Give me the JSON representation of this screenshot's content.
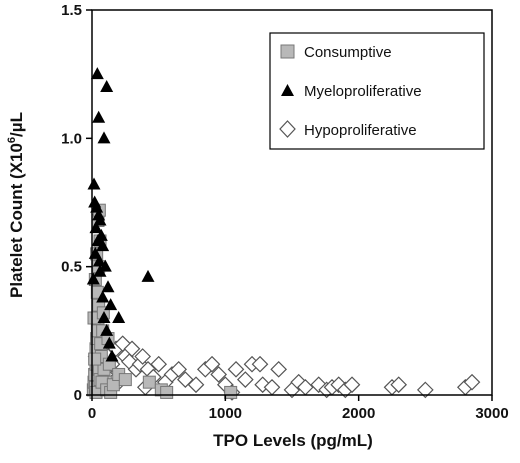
{
  "chart_data": {
    "type": "scatter",
    "title": "",
    "xlabel": "TPO Levels (pg/mL)",
    "ylabel_main": "Platelet Count (X10",
    "ylabel_sup": "6",
    "ylabel_end": "/µL",
    "xlim": [
      0,
      3000
    ],
    "ylim": [
      0,
      1.5
    ],
    "x_ticks": [
      0,
      1000,
      2000,
      3000
    ],
    "x_tick_labels": [
      "0",
      "1000",
      "2000",
      "3000"
    ],
    "y_ticks": [
      0,
      0.5,
      1.0,
      1.5
    ],
    "y_tick_labels": [
      "0",
      "0.5",
      "1.0",
      "1.5"
    ],
    "grid": false,
    "legend_position": "top-right",
    "series": [
      {
        "name": "Consumptive",
        "marker": "square",
        "color": "#b8b8b8",
        "points": [
          [
            10,
            0.02
          ],
          [
            15,
            0.05
          ],
          [
            20,
            0.08
          ],
          [
            25,
            0.03
          ],
          [
            30,
            0.12
          ],
          [
            30,
            0.18
          ],
          [
            35,
            0.22
          ],
          [
            40,
            0.25
          ],
          [
            45,
            0.3
          ],
          [
            50,
            0.35
          ],
          [
            55,
            0.1
          ],
          [
            60,
            0.06
          ],
          [
            40,
            0.4
          ],
          [
            50,
            0.5
          ],
          [
            60,
            0.6
          ],
          [
            45,
            0.68
          ],
          [
            55,
            0.72
          ],
          [
            70,
            0.15
          ],
          [
            80,
            0.25
          ],
          [
            90,
            0.1
          ],
          [
            100,
            0.05
          ],
          [
            20,
            0.14
          ],
          [
            30,
            0.01
          ],
          [
            65,
            0.2
          ],
          [
            75,
            0.05
          ],
          [
            110,
            0.02
          ],
          [
            130,
            0.12
          ],
          [
            140,
            0.01
          ],
          [
            160,
            0.04
          ],
          [
            200,
            0.08
          ],
          [
            250,
            0.06
          ],
          [
            430,
            0.05
          ],
          [
            520,
            0.02
          ],
          [
            560,
            0.01
          ],
          [
            1040,
            0.01
          ],
          [
            25,
            0.45
          ],
          [
            35,
            0.55
          ],
          [
            15,
            0.3
          ],
          [
            85,
            0.32
          ],
          [
            120,
            0.22
          ]
        ]
      },
      {
        "name": "Myeloproliferative",
        "marker": "triangle",
        "color": "#000000",
        "points": [
          [
            40,
            1.25
          ],
          [
            110,
            1.2
          ],
          [
            50,
            1.08
          ],
          [
            90,
            1.0
          ],
          [
            15,
            0.82
          ],
          [
            20,
            0.75
          ],
          [
            35,
            0.73
          ],
          [
            50,
            0.7
          ],
          [
            60,
            0.68
          ],
          [
            30,
            0.65
          ],
          [
            70,
            0.62
          ],
          [
            45,
            0.6
          ],
          [
            80,
            0.58
          ],
          [
            25,
            0.55
          ],
          [
            55,
            0.52
          ],
          [
            100,
            0.5
          ],
          [
            10,
            0.45
          ],
          [
            120,
            0.42
          ],
          [
            140,
            0.35
          ],
          [
            90,
            0.3
          ],
          [
            200,
            0.3
          ],
          [
            110,
            0.25
          ],
          [
            130,
            0.2
          ],
          [
            150,
            0.15
          ],
          [
            60,
            0.48
          ],
          [
            420,
            0.46
          ],
          [
            80,
            0.38
          ]
        ]
      },
      {
        "name": "Hypoproliferative",
        "marker": "diamond",
        "color": "#ffffff",
        "points": [
          [
            30,
            0.15
          ],
          [
            50,
            0.12
          ],
          [
            80,
            0.1
          ],
          [
            100,
            0.08
          ],
          [
            120,
            0.15
          ],
          [
            150,
            0.12
          ],
          [
            180,
            0.18
          ],
          [
            230,
            0.2
          ],
          [
            250,
            0.15
          ],
          [
            280,
            0.13
          ],
          [
            300,
            0.18
          ],
          [
            330,
            0.1
          ],
          [
            360,
            0.12
          ],
          [
            380,
            0.15
          ],
          [
            420,
            0.1
          ],
          [
            460,
            0.07
          ],
          [
            500,
            0.12
          ],
          [
            550,
            0.05
          ],
          [
            600,
            0.08
          ],
          [
            650,
            0.1
          ],
          [
            700,
            0.06
          ],
          [
            780,
            0.04
          ],
          [
            850,
            0.1
          ],
          [
            900,
            0.12
          ],
          [
            950,
            0.08
          ],
          [
            1000,
            0.04
          ],
          [
            1080,
            0.1
          ],
          [
            1150,
            0.06
          ],
          [
            1200,
            0.12
          ],
          [
            1260,
            0.12
          ],
          [
            1280,
            0.04
          ],
          [
            1350,
            0.03
          ],
          [
            1400,
            0.1
          ],
          [
            1500,
            0.02
          ],
          [
            1550,
            0.05
          ],
          [
            1600,
            0.03
          ],
          [
            1700,
            0.04
          ],
          [
            1760,
            0.02
          ],
          [
            1800,
            0.03
          ],
          [
            1850,
            0.04
          ],
          [
            1900,
            0.02
          ],
          [
            1950,
            0.04
          ],
          [
            2250,
            0.03
          ],
          [
            2300,
            0.04
          ],
          [
            2500,
            0.02
          ],
          [
            2800,
            0.03
          ],
          [
            2850,
            0.05
          ],
          [
            200,
            0.05
          ],
          [
            400,
            0.03
          ],
          [
            1050,
            0.01
          ]
        ]
      }
    ]
  }
}
